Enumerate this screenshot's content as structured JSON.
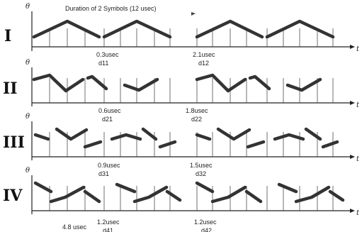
{
  "title": "Duration of 2 Symbols (12 usec)",
  "axis": {
    "y_label": "θ",
    "x_label": "t"
  },
  "rows": [
    {
      "id": "I",
      "label": "I",
      "delays": [
        {
          "value": "0.3usec",
          "name": "d11"
        },
        {
          "value": "2.1usec",
          "name": "d12"
        }
      ]
    },
    {
      "id": "II",
      "label": "II",
      "delays": [
        {
          "value": "0.6usec",
          "name": "d21"
        },
        {
          "value": "1.8usec",
          "name": "d22"
        }
      ]
    },
    {
      "id": "III",
      "label": "III",
      "delays": [
        {
          "value": "0.9usec",
          "name": "d31"
        },
        {
          "value": "1.5usec",
          "name": "d32"
        }
      ]
    },
    {
      "id": "IV",
      "label": "IV",
      "delays": [
        {
          "value": "1.2usec",
          "name": "d41"
        },
        {
          "value": "1.2usec",
          "name": "d42"
        }
      ]
    }
  ],
  "bottom_label": "4.8 usec",
  "colors": {
    "waveform": "#333333",
    "axis": "#222222"
  }
}
